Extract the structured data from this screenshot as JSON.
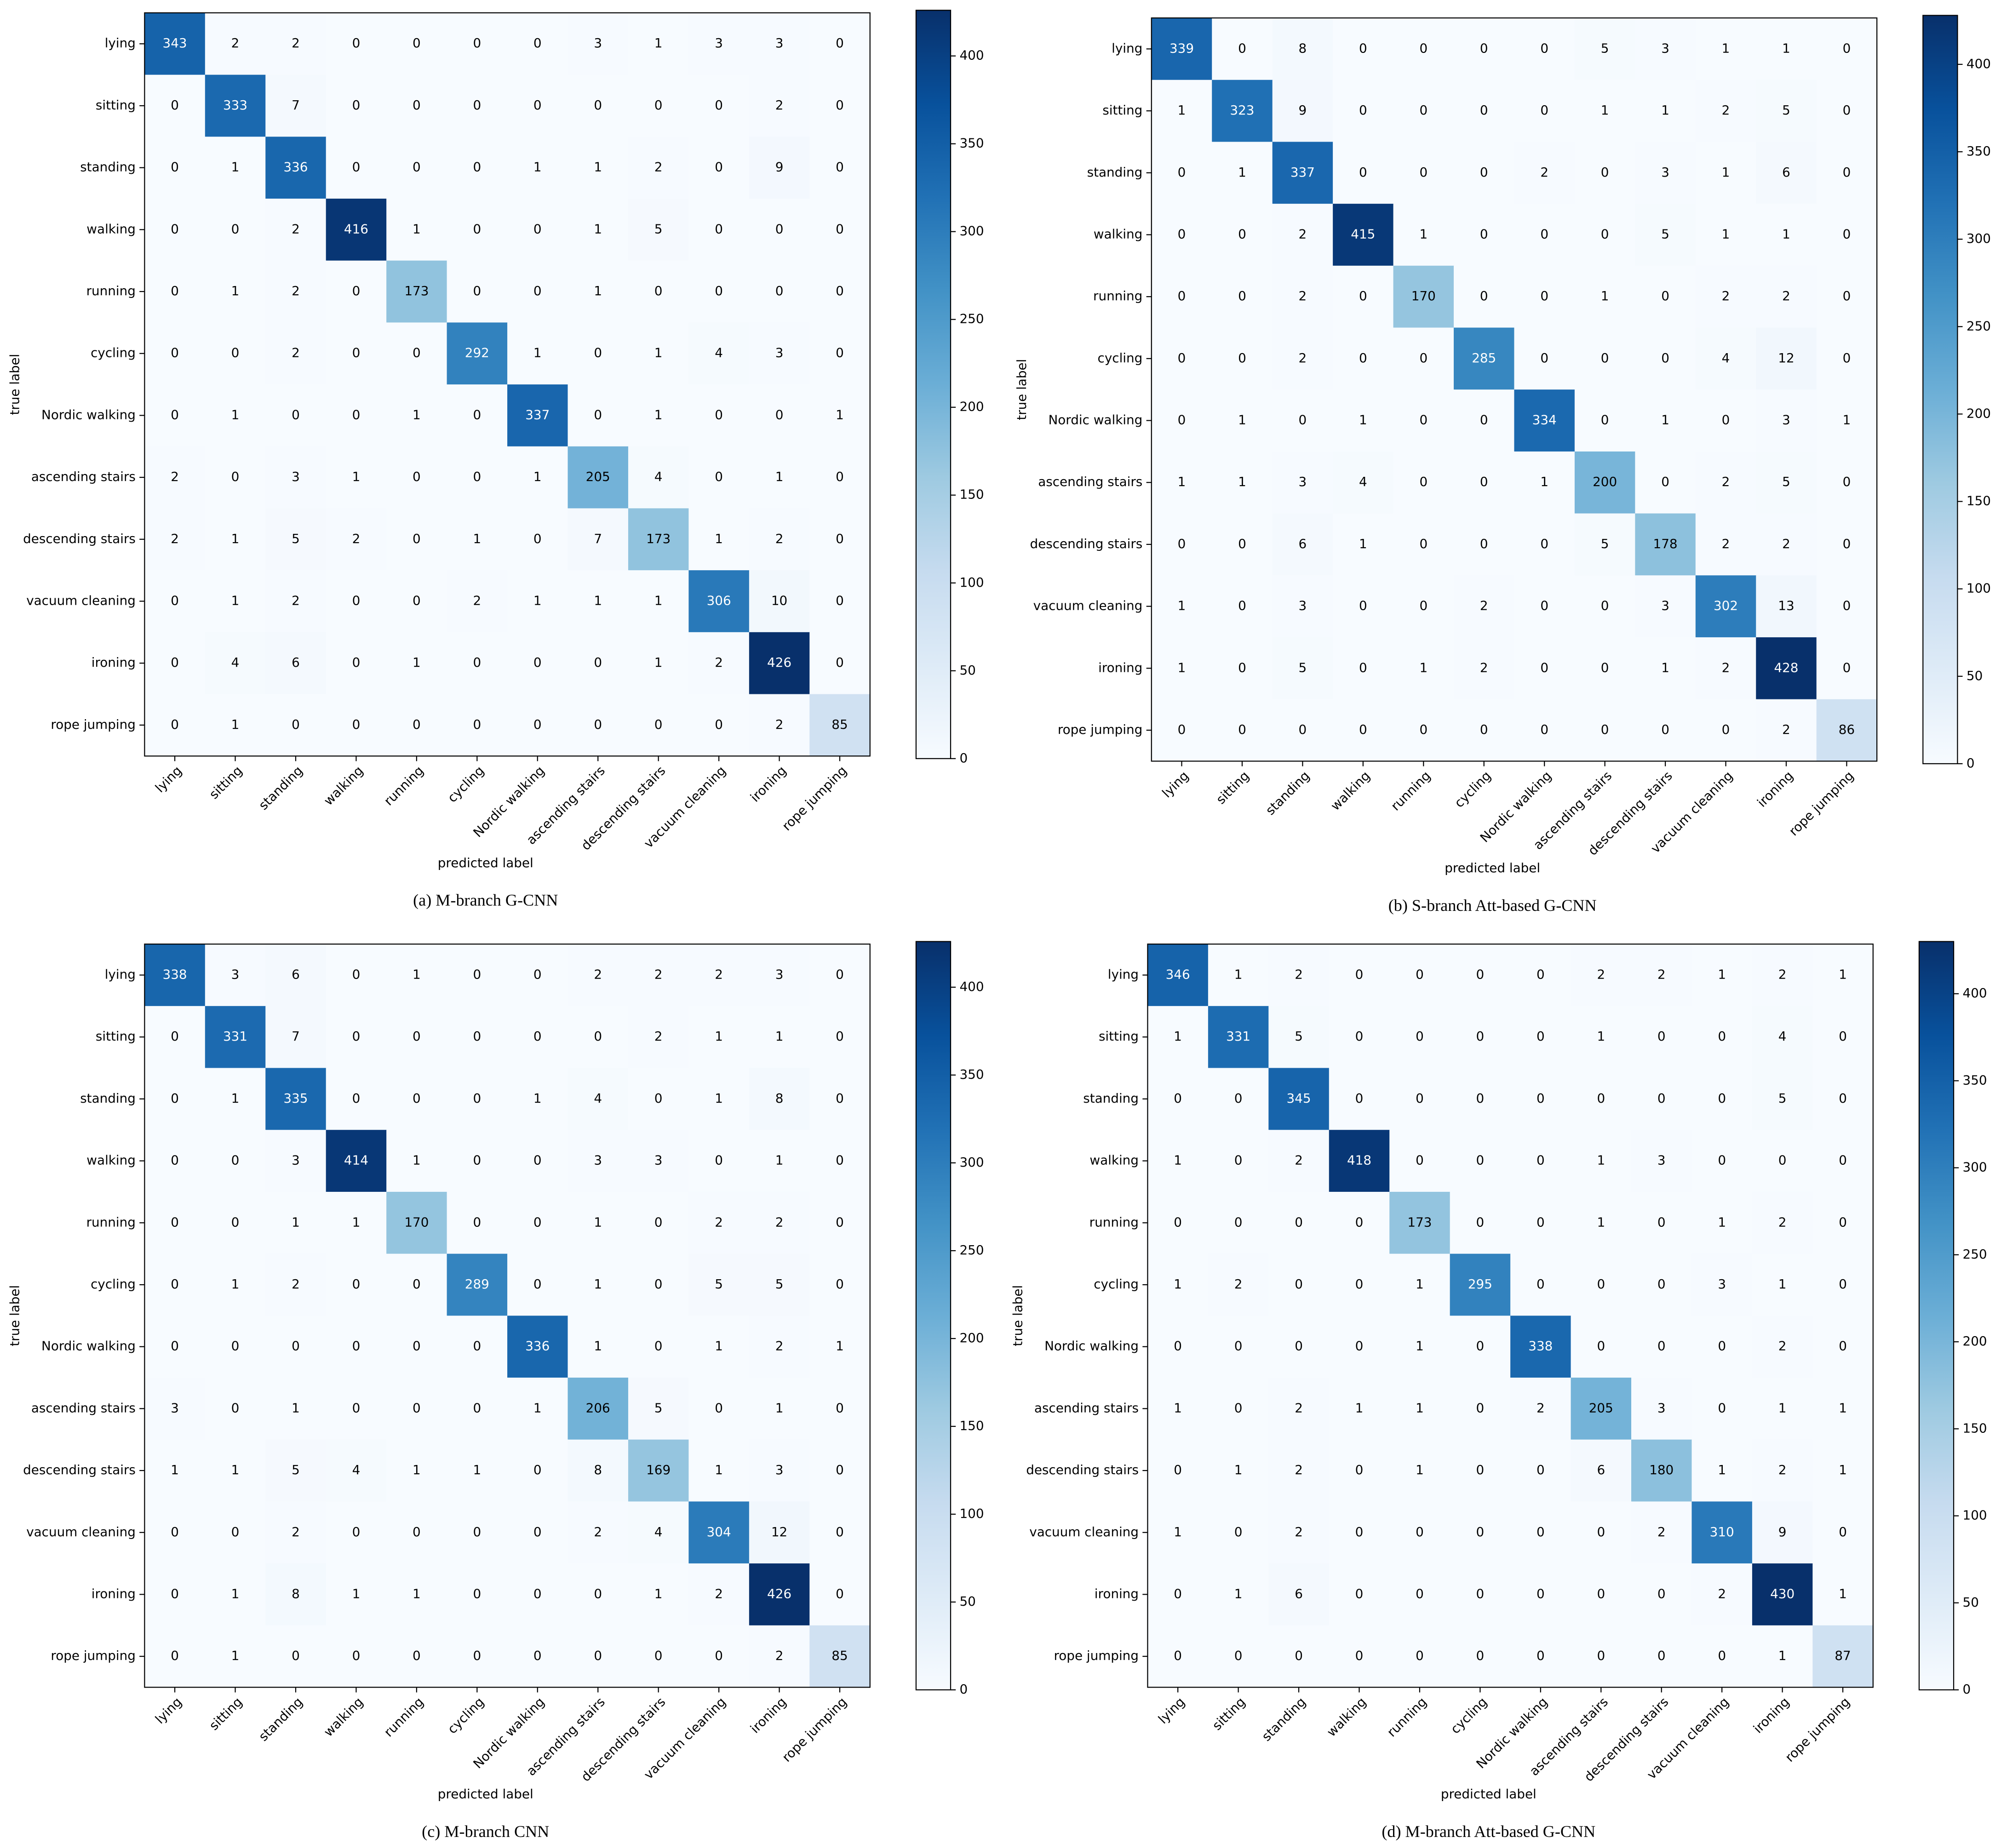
{
  "chart_data": [
    {
      "type": "heatmap",
      "title": "(a) M-branch G-CNN",
      "xlabel": "predicted label",
      "ylabel": "true label",
      "categories": [
        "lying",
        "sitting",
        "standing",
        "walking",
        "running",
        "cycling",
        "Nordic walking",
        "ascending stairs",
        "descending stairs",
        "vacuum cleaning",
        "ironing",
        "rope jumping"
      ],
      "values": [
        [
          343,
          2,
          2,
          0,
          0,
          0,
          0,
          3,
          1,
          3,
          3,
          0
        ],
        [
          0,
          333,
          7,
          0,
          0,
          0,
          0,
          0,
          0,
          0,
          2,
          0
        ],
        [
          0,
          1,
          336,
          0,
          0,
          0,
          1,
          1,
          2,
          0,
          9,
          0
        ],
        [
          0,
          0,
          2,
          416,
          1,
          0,
          0,
          1,
          5,
          0,
          0,
          0
        ],
        [
          0,
          1,
          2,
          0,
          173,
          0,
          0,
          1,
          0,
          0,
          0,
          0
        ],
        [
          0,
          0,
          2,
          0,
          0,
          292,
          1,
          0,
          1,
          4,
          3,
          0
        ],
        [
          0,
          1,
          0,
          0,
          1,
          0,
          337,
          0,
          1,
          0,
          0,
          1
        ],
        [
          2,
          0,
          3,
          1,
          0,
          0,
          1,
          205,
          4,
          0,
          1,
          0
        ],
        [
          2,
          1,
          5,
          2,
          0,
          1,
          0,
          7,
          173,
          1,
          2,
          0
        ],
        [
          0,
          1,
          2,
          0,
          0,
          2,
          1,
          1,
          1,
          306,
          10,
          0
        ],
        [
          0,
          4,
          6,
          0,
          1,
          0,
          0,
          0,
          1,
          2,
          426,
          0
        ],
        [
          0,
          1,
          0,
          0,
          0,
          0,
          0,
          0,
          0,
          0,
          2,
          85
        ]
      ],
      "zlim": [
        0,
        426
      ],
      "zticks": [
        0,
        50,
        100,
        150,
        200,
        250,
        300,
        350,
        400
      ],
      "colormap": [
        "#f7fbff",
        "#deebf7",
        "#c6dbef",
        "#9ecae1",
        "#6baed6",
        "#4292c6",
        "#2171b5",
        "#08519c",
        "#08306b"
      ]
    },
    {
      "type": "heatmap",
      "title": "(b) S-branch Att-based G-CNN",
      "xlabel": "predicted label",
      "ylabel": "true label",
      "categories": [
        "lying",
        "sitting",
        "standing",
        "walking",
        "running",
        "cycling",
        "Nordic walking",
        "ascending stairs",
        "descending stairs",
        "vacuum cleaning",
        "ironing",
        "rope jumping"
      ],
      "values": [
        [
          339,
          0,
          8,
          0,
          0,
          0,
          0,
          5,
          3,
          1,
          1,
          0
        ],
        [
          1,
          323,
          9,
          0,
          0,
          0,
          0,
          1,
          1,
          2,
          5,
          0
        ],
        [
          0,
          1,
          337,
          0,
          0,
          0,
          2,
          0,
          3,
          1,
          6,
          0
        ],
        [
          0,
          0,
          2,
          415,
          1,
          0,
          0,
          0,
          5,
          1,
          1,
          0
        ],
        [
          0,
          0,
          2,
          0,
          170,
          0,
          0,
          1,
          0,
          2,
          2,
          0
        ],
        [
          0,
          0,
          2,
          0,
          0,
          285,
          0,
          0,
          0,
          4,
          12,
          0
        ],
        [
          0,
          1,
          0,
          1,
          0,
          0,
          334,
          0,
          1,
          0,
          3,
          1
        ],
        [
          1,
          1,
          3,
          4,
          0,
          0,
          1,
          200,
          0,
          2,
          5,
          0
        ],
        [
          0,
          0,
          6,
          1,
          0,
          0,
          0,
          5,
          178,
          2,
          2,
          0
        ],
        [
          1,
          0,
          3,
          0,
          0,
          2,
          0,
          0,
          3,
          302,
          13,
          0
        ],
        [
          1,
          0,
          5,
          0,
          1,
          2,
          0,
          0,
          1,
          2,
          428,
          0
        ],
        [
          0,
          0,
          0,
          0,
          0,
          0,
          0,
          0,
          0,
          0,
          2,
          86
        ]
      ],
      "zlim": [
        0,
        428
      ],
      "zticks": [
        0,
        50,
        100,
        150,
        200,
        250,
        300,
        350,
        400
      ],
      "colormap": [
        "#f7fbff",
        "#deebf7",
        "#c6dbef",
        "#9ecae1",
        "#6baed6",
        "#4292c6",
        "#2171b5",
        "#08519c",
        "#08306b"
      ]
    },
    {
      "type": "heatmap",
      "title": "(c) M-branch CNN",
      "xlabel": "predicted label",
      "ylabel": "true label",
      "categories": [
        "lying",
        "sitting",
        "standing",
        "walking",
        "running",
        "cycling",
        "Nordic walking",
        "ascending stairs",
        "descending stairs",
        "vacuum cleaning",
        "ironing",
        "rope jumping"
      ],
      "values": [
        [
          338,
          3,
          6,
          0,
          1,
          0,
          0,
          2,
          2,
          2,
          3,
          0
        ],
        [
          0,
          331,
          7,
          0,
          0,
          0,
          0,
          0,
          2,
          1,
          1,
          0
        ],
        [
          0,
          1,
          335,
          0,
          0,
          0,
          1,
          4,
          0,
          1,
          8,
          0
        ],
        [
          0,
          0,
          3,
          414,
          1,
          0,
          0,
          3,
          3,
          0,
          1,
          0
        ],
        [
          0,
          0,
          1,
          1,
          170,
          0,
          0,
          1,
          0,
          2,
          2,
          0
        ],
        [
          0,
          1,
          2,
          0,
          0,
          289,
          0,
          1,
          0,
          5,
          5,
          0
        ],
        [
          0,
          0,
          0,
          0,
          0,
          0,
          336,
          1,
          0,
          1,
          2,
          1
        ],
        [
          3,
          0,
          1,
          0,
          0,
          0,
          1,
          206,
          5,
          0,
          1,
          0
        ],
        [
          1,
          1,
          5,
          4,
          1,
          1,
          0,
          8,
          169,
          1,
          3,
          0
        ],
        [
          0,
          0,
          2,
          0,
          0,
          0,
          0,
          2,
          4,
          304,
          12,
          0
        ],
        [
          0,
          1,
          8,
          1,
          1,
          0,
          0,
          0,
          1,
          2,
          426,
          0
        ],
        [
          0,
          1,
          0,
          0,
          0,
          0,
          0,
          0,
          0,
          0,
          2,
          85
        ]
      ],
      "zlim": [
        0,
        426
      ],
      "zticks": [
        0,
        50,
        100,
        150,
        200,
        250,
        300,
        350,
        400
      ],
      "colormap": [
        "#f7fbff",
        "#deebf7",
        "#c6dbef",
        "#9ecae1",
        "#6baed6",
        "#4292c6",
        "#2171b5",
        "#08519c",
        "#08306b"
      ]
    },
    {
      "type": "heatmap",
      "title": "(d) M-branch Att-based G-CNN",
      "xlabel": "predicted label",
      "ylabel": "true label",
      "categories": [
        "lying",
        "sitting",
        "standing",
        "walking",
        "running",
        "cycling",
        "Nordic walking",
        "ascending stairs",
        "descending stairs",
        "vacuum cleaning",
        "ironing",
        "rope jumping"
      ],
      "values": [
        [
          346,
          1,
          2,
          0,
          0,
          0,
          0,
          2,
          2,
          1,
          2,
          1
        ],
        [
          1,
          331,
          5,
          0,
          0,
          0,
          0,
          1,
          0,
          0,
          4,
          0
        ],
        [
          0,
          0,
          345,
          0,
          0,
          0,
          0,
          0,
          0,
          0,
          5,
          0
        ],
        [
          1,
          0,
          2,
          418,
          0,
          0,
          0,
          1,
          3,
          0,
          0,
          0
        ],
        [
          0,
          0,
          0,
          0,
          173,
          0,
          0,
          1,
          0,
          1,
          2,
          0
        ],
        [
          1,
          2,
          0,
          0,
          1,
          295,
          0,
          0,
          0,
          3,
          1,
          0
        ],
        [
          0,
          0,
          0,
          0,
          1,
          0,
          338,
          0,
          0,
          0,
          2,
          0
        ],
        [
          1,
          0,
          2,
          1,
          1,
          0,
          2,
          205,
          3,
          0,
          1,
          1
        ],
        [
          0,
          1,
          2,
          0,
          1,
          0,
          0,
          6,
          180,
          1,
          2,
          1
        ],
        [
          1,
          0,
          2,
          0,
          0,
          0,
          0,
          0,
          2,
          310,
          9,
          0
        ],
        [
          0,
          1,
          6,
          0,
          0,
          0,
          0,
          0,
          0,
          2,
          430,
          1
        ],
        [
          0,
          0,
          0,
          0,
          0,
          0,
          0,
          0,
          0,
          0,
          1,
          87
        ]
      ],
      "zlim": [
        0,
        430
      ],
      "zticks": [
        0,
        50,
        100,
        150,
        200,
        250,
        300,
        350,
        400
      ],
      "colormap": [
        "#f7fbff",
        "#deebf7",
        "#c6dbef",
        "#9ecae1",
        "#6baed6",
        "#4292c6",
        "#2171b5",
        "#08519c",
        "#08306b"
      ]
    }
  ]
}
